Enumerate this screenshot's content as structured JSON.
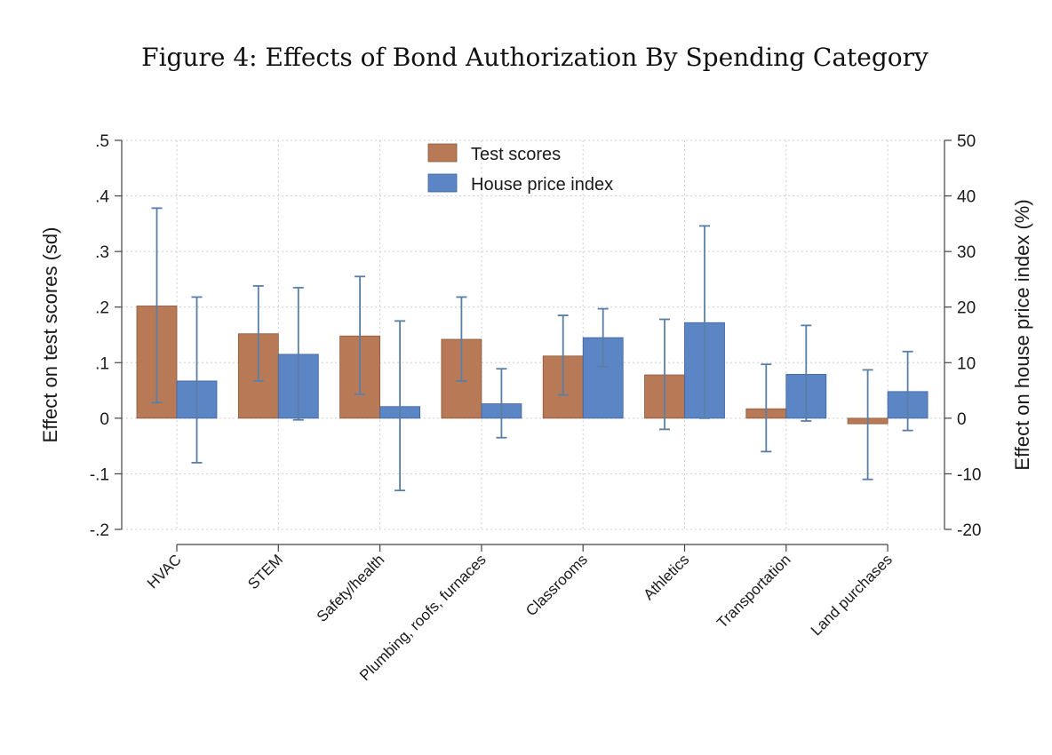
{
  "figure_title": "Figure 4: Effects of Bond Authorization By Spending Category",
  "colors": {
    "test_scores": "#b87a56",
    "house_price": "#5b85c4",
    "error_bar": "#5a7fa6",
    "grid": "#cfcfcf",
    "axis": "#444444"
  },
  "chart_data": {
    "type": "bar",
    "title": "Figure 4: Effects of Bond Authorization By Spending Category",
    "categories": [
      "HVAC",
      "STEM",
      "Safety/health",
      "Plumbing, roofs, furnaces",
      "Classrooms",
      "Athletics",
      "Transportation",
      "Land purchases"
    ],
    "series": [
      {
        "name": "Test scores",
        "axis": "left",
        "values": [
          0.202,
          0.152,
          0.148,
          0.142,
          0.112,
          0.078,
          0.017,
          -0.01
        ],
        "ci_low": [
          0.028,
          0.067,
          0.043,
          0.067,
          0.042,
          -0.02,
          -0.06,
          -0.11
        ],
        "ci_high": [
          0.378,
          0.238,
          0.255,
          0.218,
          0.185,
          0.178,
          0.097,
          0.087
        ]
      },
      {
        "name": "House price index",
        "axis": "right",
        "values": [
          6.7,
          11.5,
          2.1,
          2.6,
          14.5,
          17.2,
          7.9,
          4.8
        ],
        "ci_low": [
          -8.0,
          -0.3,
          -13.0,
          -3.5,
          9.3,
          0.0,
          -0.5,
          -2.2
        ],
        "ci_high": [
          21.8,
          23.5,
          17.5,
          8.9,
          19.7,
          34.6,
          16.7,
          12.0
        ]
      }
    ],
    "ylabel": "Effect on test scores (sd)",
    "ylabel_right": "Effect on house price index (%)",
    "ylim": [
      -0.2,
      0.5
    ],
    "ylim_right": [
      -20,
      50
    ],
    "yticks": [
      ".5",
      ".4",
      ".3",
      ".2",
      ".1",
      "0",
      "-.1",
      "-.2"
    ],
    "yticks_values": [
      0.5,
      0.4,
      0.3,
      0.2,
      0.1,
      0,
      -0.1,
      -0.2
    ],
    "yticks_right": [
      "50",
      "40",
      "30",
      "20",
      "10",
      "0",
      "-10",
      "-20"
    ],
    "yticks_right_values": [
      50,
      40,
      30,
      20,
      10,
      0,
      -10,
      -20
    ],
    "legend": [
      "Test scores",
      "House price index"
    ],
    "legend_position": "top-center",
    "grid": true
  }
}
